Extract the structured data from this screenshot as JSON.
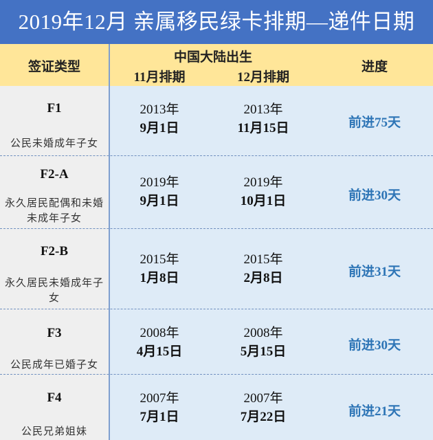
{
  "title": "2019年12月  亲属移民绿卡排期—递件日期",
  "header": {
    "visa_type": "签证类型",
    "region": "中国大陆出生",
    "nov": "11月排期",
    "dec": "12月排期",
    "progress": "进度"
  },
  "rows": [
    {
      "code": "F1",
      "desc": "公民未婚成年子女",
      "nov_year": "2013年",
      "nov_date": "9月1日",
      "dec_year": "2013年",
      "dec_date": "11月15日",
      "progress": "前进75天"
    },
    {
      "code": "F2-A",
      "desc": "永久居民配偶和未婚未成年子女",
      "nov_year": "2019年",
      "nov_date": "9月1日",
      "dec_year": "2019年",
      "dec_date": "10月1日",
      "progress": "前进30天"
    },
    {
      "code": "F2-B",
      "desc": "永久居民未婚成年子女",
      "nov_year": "2015年",
      "nov_date": "1月8日",
      "dec_year": "2015年",
      "dec_date": "2月8日",
      "progress": "前进31天"
    },
    {
      "code": "F3",
      "desc": "公民成年已婚子女",
      "nov_year": "2008年",
      "nov_date": "4月15日",
      "dec_year": "2008年",
      "dec_date": "5月15日",
      "progress": "前进30天"
    },
    {
      "code": "F4",
      "desc": "公民兄弟姐妹",
      "nov_year": "2007年",
      "nov_date": "7月1日",
      "dec_year": "2007年",
      "dec_date": "7月22日",
      "progress": "前进21天"
    }
  ],
  "colors": {
    "title_bg": "#4472c4",
    "header_bg": "#ffe699",
    "left_bg": "#efefef",
    "right_bg": "#deebf7",
    "progress_text": "#2e75b6"
  }
}
